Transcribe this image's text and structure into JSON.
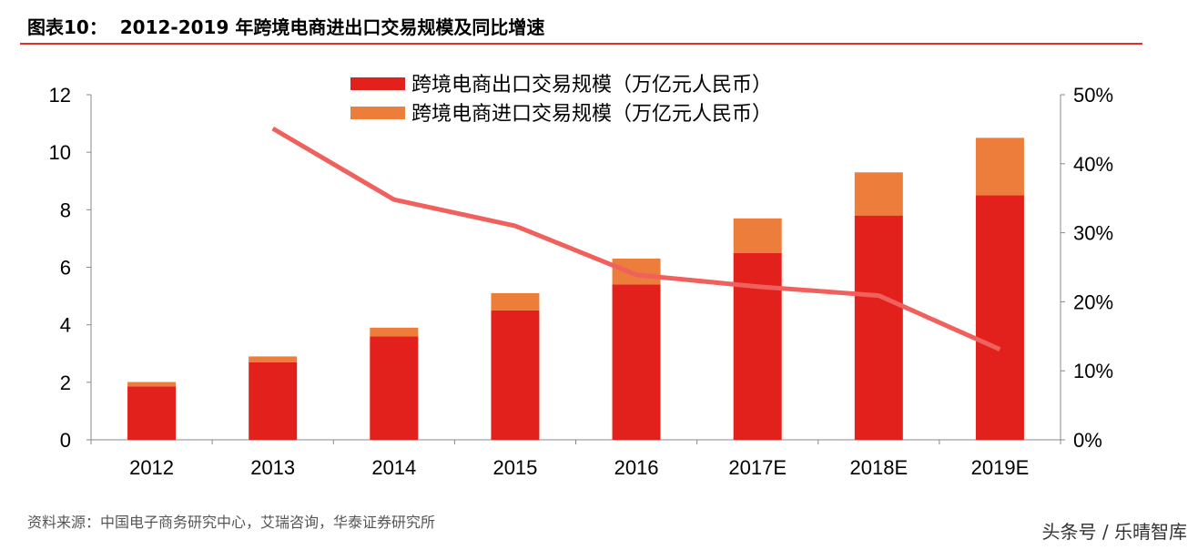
{
  "title": "图表10：  2012-2019 年跨境电商进出口交易规模及同比增速",
  "source": "资料来源：中国电子商务研究中心，艾瑞咨询，华泰证券研究所",
  "watermark": "头条号 / 乐晴智库",
  "chart_data": {
    "type": "bar",
    "stacked": true,
    "categories": [
      "2012",
      "2013",
      "2014",
      "2015",
      "2016",
      "2017E",
      "2018E",
      "2019E"
    ],
    "series": [
      {
        "name": "跨境电商出口交易规模（万亿元人民币）",
        "axis": "left",
        "color": "#E2201C",
        "values": [
          1.86,
          2.7,
          3.6,
          4.5,
          5.4,
          6.5,
          7.8,
          8.5
        ]
      },
      {
        "name": "跨境电商进口交易规模（万亿元人民币）",
        "axis": "left",
        "color": "#ED7D3A",
        "values": [
          0.15,
          0.2,
          0.3,
          0.6,
          0.9,
          1.2,
          1.5,
          2.0
        ]
      },
      {
        "name": "同比增速",
        "type": "line",
        "axis": "right",
        "color": "#F0605D",
        "values": [
          null,
          45.1,
          34.8,
          31.0,
          23.9,
          22.2,
          20.9,
          13.1
        ]
      }
    ],
    "y_left": {
      "ylim": [
        0,
        12
      ],
      "ticks": [
        "0",
        "2",
        "4",
        "6",
        "8",
        "10",
        "12"
      ]
    },
    "y_right": {
      "ylim": [
        0,
        50
      ],
      "ticks": [
        "0%",
        "10%",
        "20%",
        "30%",
        "40%",
        "50%"
      ]
    },
    "legend_position": "top-center",
    "grid": false
  }
}
